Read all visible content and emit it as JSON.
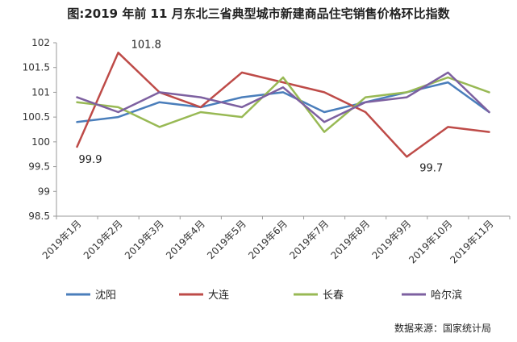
{
  "title": "图:2019 年前 11 月东北三省典型城市新建商品住宅销售价格环比指数",
  "source": "数据来源：国家统计局",
  "chart_data": {
    "type": "line",
    "title": "图:2019 年前 11 月东北三省典型城市新建商品住宅销售价格环比指数",
    "xlabel": "",
    "ylabel": "",
    "ylim": [
      98.5,
      102
    ],
    "yticks": [
      98.5,
      99,
      99.5,
      100,
      100.5,
      101,
      101.5,
      102
    ],
    "ytick_labels": [
      "98.5",
      "99",
      "99.5",
      "100",
      "100.5",
      "101",
      "101.5",
      "102"
    ],
    "categories": [
      "2019年1月",
      "2019年2月",
      "2019年3月",
      "2019年4月",
      "2019年5月",
      "2019年6月",
      "2019年7月",
      "2019年8月",
      "2019年9月",
      "2019年10月",
      "2019年11月"
    ],
    "grid": false,
    "legend_position": "bottom",
    "series": [
      {
        "name": "沈阳",
        "color": "#4a7ebb",
        "values": [
          100.4,
          100.5,
          100.8,
          100.7,
          100.9,
          101.0,
          100.6,
          100.8,
          101.0,
          101.2,
          100.6
        ]
      },
      {
        "name": "大连",
        "color": "#be4b48",
        "values": [
          99.9,
          101.8,
          101.0,
          100.7,
          101.4,
          101.2,
          101.0,
          100.6,
          99.7,
          100.3,
          100.2
        ]
      },
      {
        "name": "长春",
        "color": "#98b954",
        "values": [
          100.8,
          100.7,
          100.3,
          100.6,
          100.5,
          101.3,
          100.2,
          100.9,
          101.0,
          101.3,
          101.0
        ]
      },
      {
        "name": "哈尔滨",
        "color": "#7d60a0",
        "values": [
          100.9,
          100.6,
          101.0,
          100.9,
          100.7,
          101.1,
          100.4,
          100.8,
          100.9,
          101.4,
          100.6
        ]
      }
    ],
    "annotations": [
      {
        "series": 1,
        "index": 1,
        "text": "101.8"
      },
      {
        "series": 1,
        "index": 0,
        "text": "99.9"
      },
      {
        "series": 1,
        "index": 8,
        "text": "99.7"
      }
    ]
  }
}
